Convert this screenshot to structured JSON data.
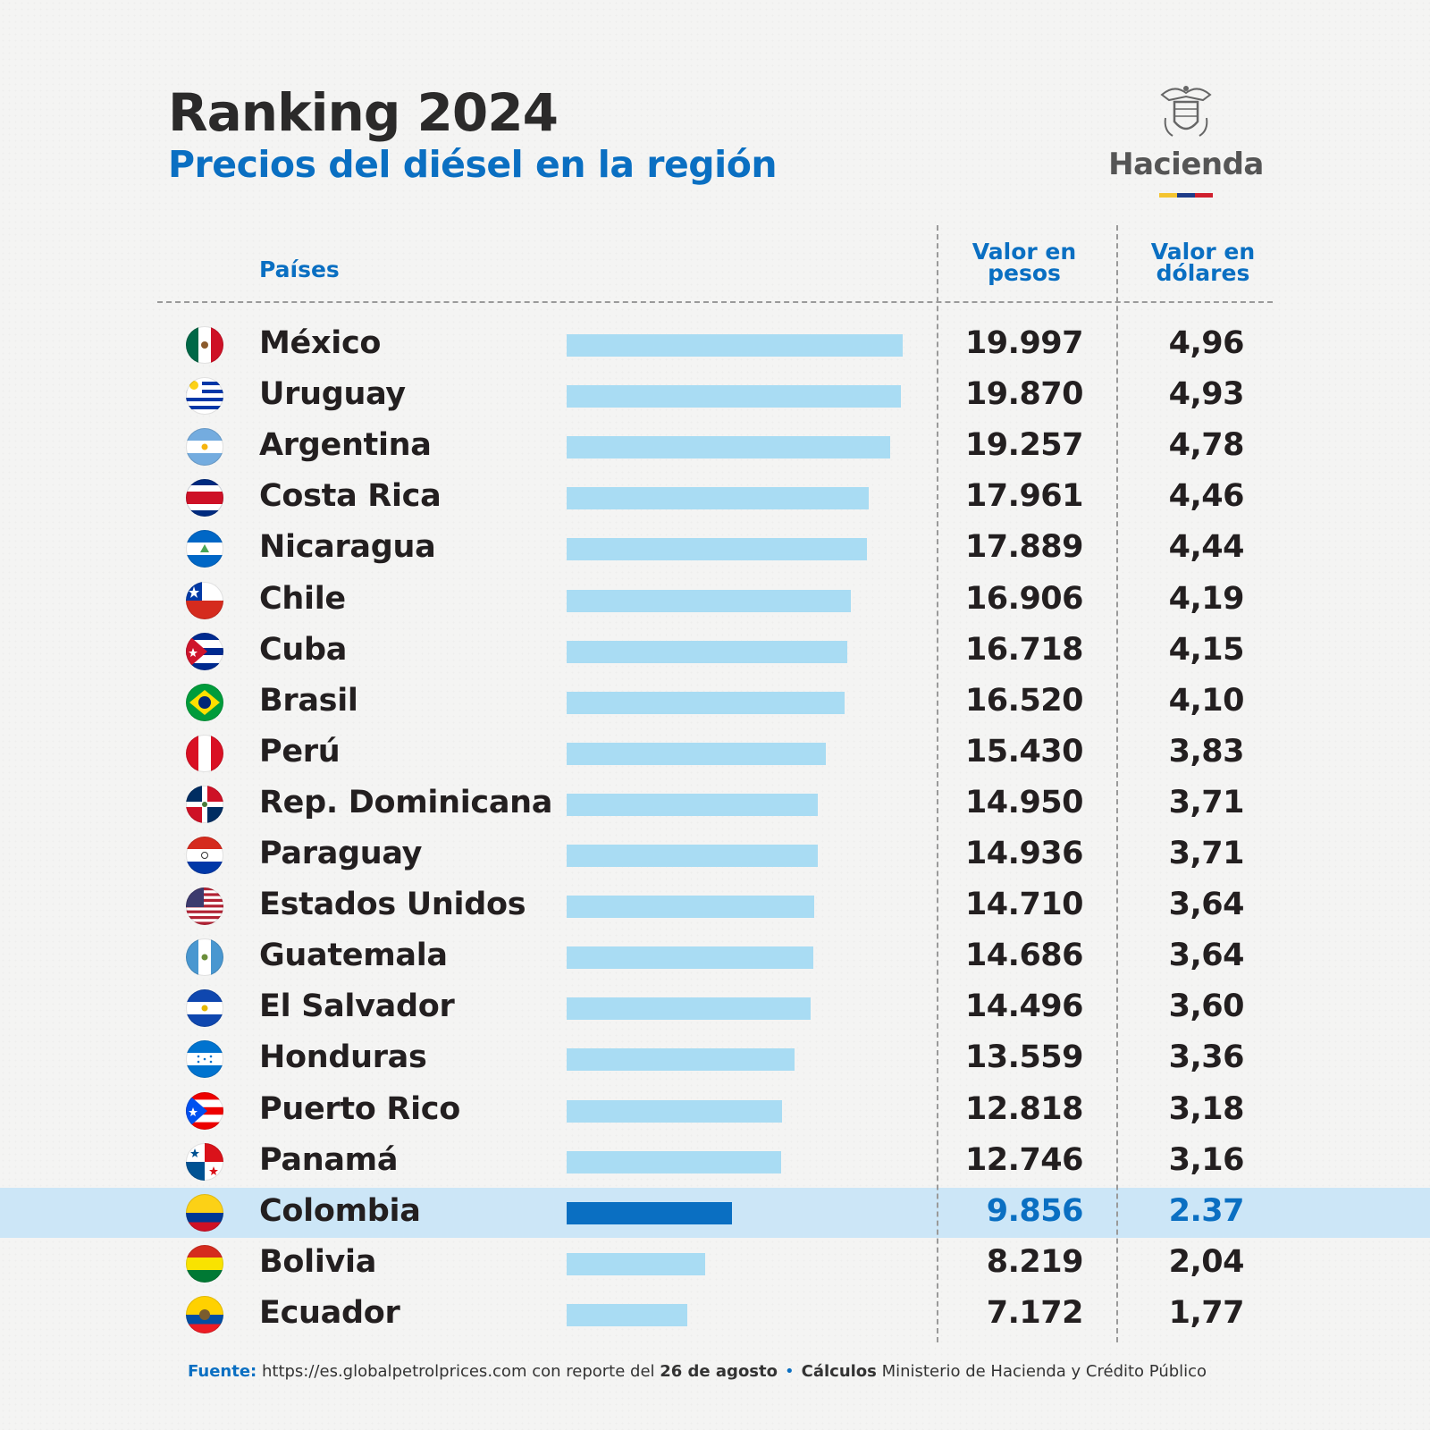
{
  "header": {
    "title": "Ranking 2024",
    "subtitle": "Precios del diésel en la región"
  },
  "logo": {
    "text": "Hacienda",
    "stripe_colors": [
      "#f4c430",
      "#1f3c88",
      "#d0202e"
    ]
  },
  "columns": {
    "countries": "Países",
    "pesos_line1": "Valor en",
    "pesos_line2": "pesos",
    "dollars_line1": "Valor en",
    "dollars_line2": "dólares"
  },
  "colors": {
    "bar": "#a9dcf3",
    "highlight_bar": "#0a6fc2",
    "highlight_row": "#cce6f7",
    "accent": "#0a6fc2"
  },
  "chart_data": {
    "type": "bar",
    "orientation": "horizontal",
    "title": "Ranking 2024",
    "subtitle": "Precios del diésel en la región",
    "highlight": "Colombia",
    "rows": [
      {
        "country": "México",
        "flag": "mexico",
        "pesos": 19997,
        "pesos_label": "19.997",
        "usd_label": "4,96"
      },
      {
        "country": "Uruguay",
        "flag": "uruguay",
        "pesos": 19870,
        "pesos_label": "19.870",
        "usd_label": "4,93"
      },
      {
        "country": "Argentina",
        "flag": "argentina",
        "pesos": 19257,
        "pesos_label": "19.257",
        "usd_label": "4,78"
      },
      {
        "country": "Costa Rica",
        "flag": "costa-rica",
        "pesos": 17961,
        "pesos_label": "17.961",
        "usd_label": "4,46"
      },
      {
        "country": "Nicaragua",
        "flag": "nicaragua",
        "pesos": 17889,
        "pesos_label": "17.889",
        "usd_label": "4,44"
      },
      {
        "country": "Chile",
        "flag": "chile",
        "pesos": 16906,
        "pesos_label": "16.906",
        "usd_label": "4,19"
      },
      {
        "country": "Cuba",
        "flag": "cuba",
        "pesos": 16718,
        "pesos_label": "16.718",
        "usd_label": "4,15"
      },
      {
        "country": "Brasil",
        "flag": "brazil",
        "pesos": 16520,
        "pesos_label": "16.520",
        "usd_label": "4,10"
      },
      {
        "country": "Perú",
        "flag": "peru",
        "pesos": 15430,
        "pesos_label": "15.430",
        "usd_label": "3,83"
      },
      {
        "country": "Rep. Dominicana",
        "flag": "dominican-republic",
        "pesos": 14950,
        "pesos_label": "14.950",
        "usd_label": "3,71"
      },
      {
        "country": "Paraguay",
        "flag": "paraguay",
        "pesos": 14936,
        "pesos_label": "14.936",
        "usd_label": "3,71"
      },
      {
        "country": "Estados Unidos",
        "flag": "united-states",
        "pesos": 14710,
        "pesos_label": "14.710",
        "usd_label": "3,64"
      },
      {
        "country": "Guatemala",
        "flag": "guatemala",
        "pesos": 14686,
        "pesos_label": "14.686",
        "usd_label": "3,64"
      },
      {
        "country": "El Salvador",
        "flag": "el-salvador",
        "pesos": 14496,
        "pesos_label": "14.496",
        "usd_label": "3,60"
      },
      {
        "country": "Honduras",
        "flag": "honduras",
        "pesos": 13559,
        "pesos_label": "13.559",
        "usd_label": "3,36"
      },
      {
        "country": "Puerto Rico",
        "flag": "puerto-rico",
        "pesos": 12818,
        "pesos_label": "12.818",
        "usd_label": "3,18"
      },
      {
        "country": "Panamá",
        "flag": "panama",
        "pesos": 12746,
        "pesos_label": "12.746",
        "usd_label": "3,16"
      },
      {
        "country": "Colombia",
        "flag": "colombia",
        "pesos": 9856,
        "pesos_label": "9.856",
        "usd_label": "2.37"
      },
      {
        "country": "Bolivia",
        "flag": "bolivia",
        "pesos": 8219,
        "pesos_label": "8.219",
        "usd_label": "2,04"
      },
      {
        "country": "Ecuador",
        "flag": "ecuador",
        "pesos": 7172,
        "pesos_label": "7.172",
        "usd_label": "1,77"
      }
    ]
  },
  "footer": {
    "source_label": "Fuente:",
    "source_text": " https://es.globalpetrolprices.com con reporte del ",
    "source_date": "26 de agosto",
    "separator": "•",
    "calc_label": "Cálculos",
    "calc_text": " Ministerio de Hacienda y Crédito Público"
  }
}
